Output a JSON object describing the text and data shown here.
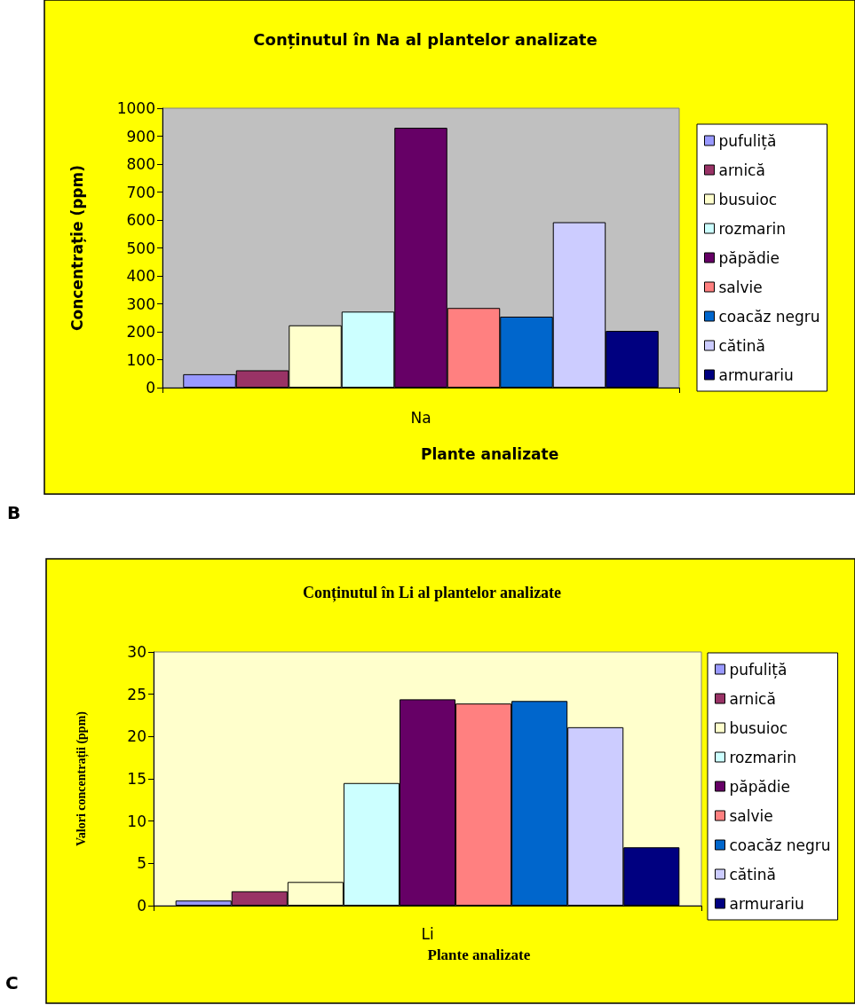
{
  "chart_data": [
    {
      "type": "bar",
      "title": "Conținutul în Na al plantelor analizate",
      "xlabel": "Plante analizate",
      "ylabel": "Concentrație (ppm)",
      "categories": [
        "Na"
      ],
      "series": [
        {
          "name": "pufuliță",
          "color": "#9999ff",
          "values": [
            48
          ]
        },
        {
          "name": "arnică",
          "color": "#993366",
          "values": [
            62
          ]
        },
        {
          "name": "busuioc",
          "color": "#ffffcc",
          "values": [
            223
          ]
        },
        {
          "name": "rozmarin",
          "color": "#ccffff",
          "values": [
            272
          ]
        },
        {
          "name": "păpădie",
          "color": "#660066",
          "values": [
            930
          ]
        },
        {
          "name": "salvie",
          "color": "#ff8080",
          "values": [
            285
          ]
        },
        {
          "name": "coacăz negru",
          "color": "#0066cc",
          "values": [
            254
          ]
        },
        {
          "name": "cătină",
          "color": "#ccccff",
          "values": [
            592
          ]
        },
        {
          "name": "armurariu",
          "color": "#000080",
          "values": [
            203
          ]
        }
      ],
      "ylim": [
        0,
        1000
      ],
      "yticks": [
        0,
        100,
        200,
        300,
        400,
        500,
        600,
        700,
        800,
        900,
        1000
      ],
      "legend": "right",
      "annotations": [
        "B"
      ]
    },
    {
      "type": "bar",
      "title": "Conținutul în Li al plantelor analizate",
      "xlabel": "Plante analizate",
      "ylabel": "Valori concentrații (ppm)",
      "categories": [
        "Li"
      ],
      "series": [
        {
          "name": "pufuliță",
          "color": "#9999ff",
          "values": [
            0.6
          ]
        },
        {
          "name": "arnică",
          "color": "#993366",
          "values": [
            1.7
          ]
        },
        {
          "name": "busuioc",
          "color": "#ffffcc",
          "values": [
            2.8
          ]
        },
        {
          "name": "rozmarin",
          "color": "#ccffff",
          "values": [
            14.5
          ]
        },
        {
          "name": "păpădie",
          "color": "#660066",
          "values": [
            24.4
          ]
        },
        {
          "name": "salvie",
          "color": "#ff8080",
          "values": [
            23.9
          ]
        },
        {
          "name": "coacăz negru",
          "color": "#0066cc",
          "values": [
            24.2
          ]
        },
        {
          "name": "cătină",
          "color": "#ccccff",
          "values": [
            21.1
          ]
        },
        {
          "name": "armurariu",
          "color": "#000080",
          "values": [
            6.9
          ]
        }
      ],
      "ylim": [
        0,
        30
      ],
      "yticks": [
        0,
        5,
        10,
        15,
        20,
        25,
        30
      ],
      "legend": "right",
      "annotations": [
        "C"
      ]
    }
  ]
}
